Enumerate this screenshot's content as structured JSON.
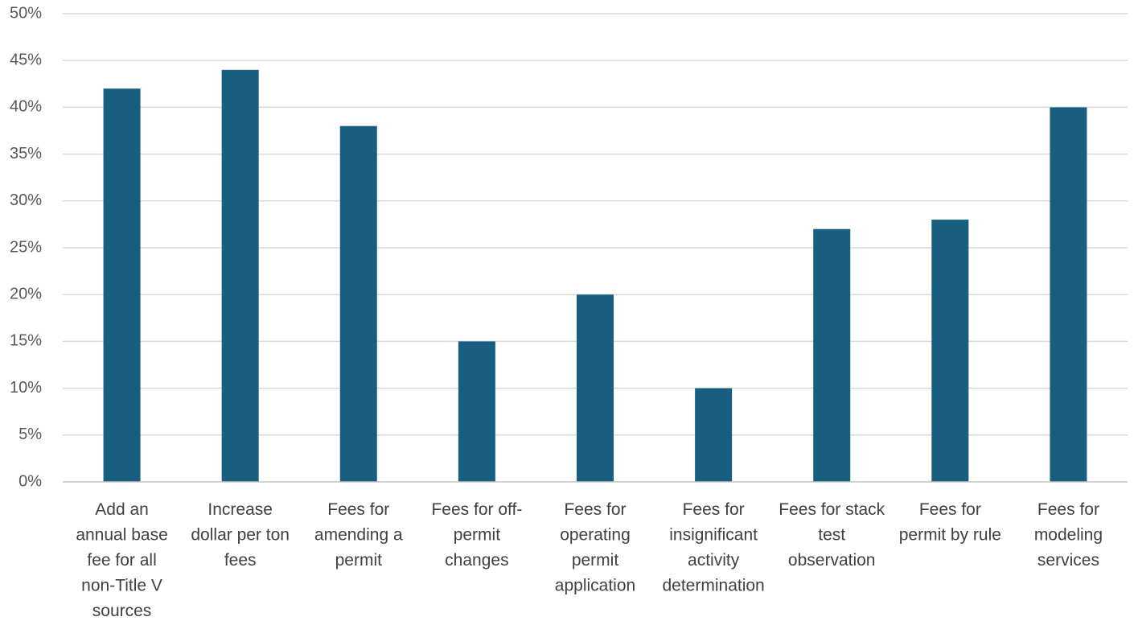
{
  "chart_data": {
    "type": "bar",
    "title": "",
    "xlabel": "",
    "ylabel": "",
    "ylim": [
      0,
      50
    ],
    "yticks": [
      "0%",
      "5%",
      "10%",
      "15%",
      "20%",
      "25%",
      "30%",
      "35%",
      "40%",
      "45%",
      "50%"
    ],
    "grid": true,
    "legend": "none",
    "bar_color": "#175e80",
    "categories": [
      [
        "Add an",
        "annual base",
        "fee for all",
        "non-Title V",
        "sources"
      ],
      [
        "Increase",
        "dollar per ton",
        "fees"
      ],
      [
        "Fees for",
        "amending a",
        "permit"
      ],
      [
        "Fees for off-",
        "permit",
        "changes"
      ],
      [
        "Fees for",
        "operating",
        "permit",
        "application"
      ],
      [
        "Fees for",
        "insignificant",
        "activity",
        "determination"
      ],
      [
        "Fees for stack",
        "test",
        "observation"
      ],
      [
        "Fees for",
        "permit by rule"
      ],
      [
        "Fees for",
        "modeling",
        "services"
      ]
    ],
    "values": [
      42,
      44,
      38,
      15,
      20,
      10,
      27,
      28,
      40
    ]
  }
}
